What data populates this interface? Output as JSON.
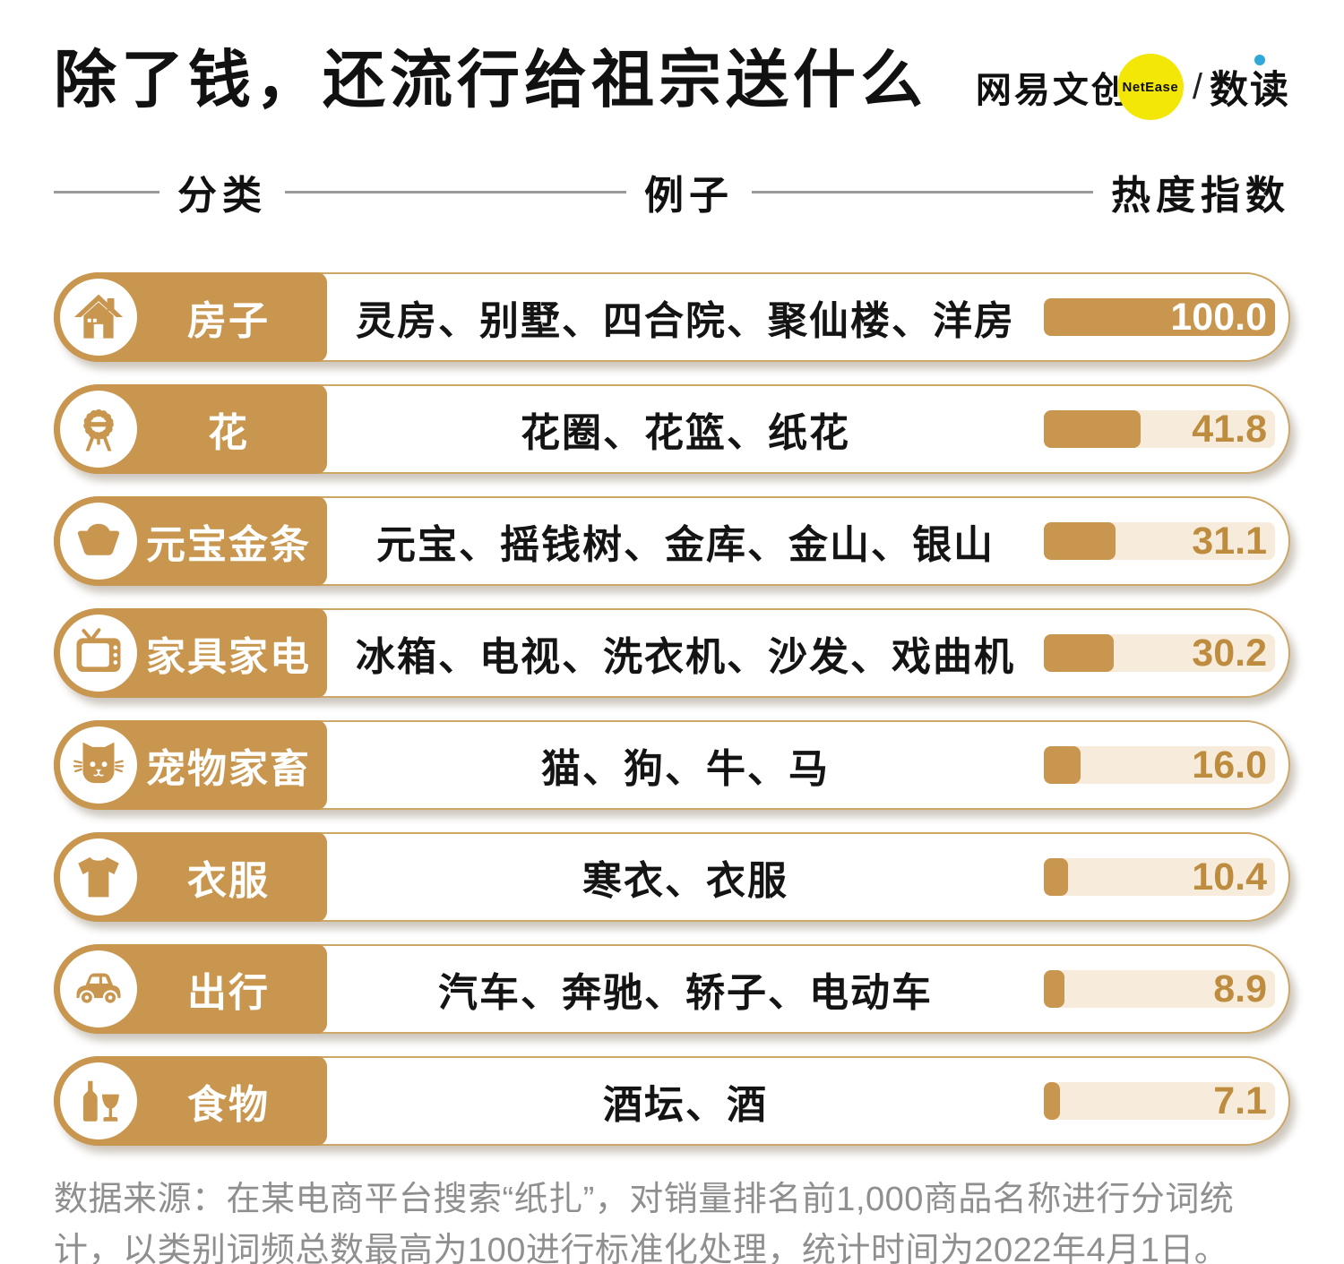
{
  "title": "除了钱，还流行给祖宗送什么",
  "logo": {
    "brand": "网易文创",
    "netease": "NetEase",
    "slash": "/",
    "product": "数读"
  },
  "columns": {
    "category": "分类",
    "examples": "例子",
    "index": "热度指数"
  },
  "rows": [
    {
      "icon": "house-icon",
      "category": "房子",
      "examples": "灵房、别墅、四合院、聚仙楼、洋房",
      "value": 100.0,
      "value_label": "100.0"
    },
    {
      "icon": "wreath-icon",
      "category": "花",
      "examples": "花圈、花篮、纸花",
      "value": 41.8,
      "value_label": "41.8"
    },
    {
      "icon": "ingot-icon",
      "category": "元宝金条",
      "examples": "元宝、摇钱树、金库、金山、银山",
      "value": 31.1,
      "value_label": "31.1"
    },
    {
      "icon": "tv-icon",
      "category": "家具家电",
      "examples": "冰箱、电视、洗衣机、沙发、戏曲机",
      "value": 30.2,
      "value_label": "30.2"
    },
    {
      "icon": "cat-icon",
      "category": "宠物家畜",
      "examples": "猫、狗、牛、马",
      "value": 16.0,
      "value_label": "16.0"
    },
    {
      "icon": "shirt-icon",
      "category": "衣服",
      "examples": "寒衣、衣服",
      "value": 10.4,
      "value_label": "10.4"
    },
    {
      "icon": "car-icon",
      "category": "出行",
      "examples": "汽车、奔驰、轿子、电动车",
      "value": 8.9,
      "value_label": "8.9"
    },
    {
      "icon": "wine-icon",
      "category": "食物",
      "examples": "酒坛、酒",
      "value": 7.1,
      "value_label": "7.1"
    }
  ],
  "footnote": "数据来源：在某电商平台搜索“纸扎”，对销量排名前1,000商品名称进行分词统计，以类别词频总数最高为100进行标准化处理，统计时间为2022年4月1日。",
  "colors": {
    "gold": "#C8964E",
    "cream": "#F7ECDB",
    "yellow": "#F3E707",
    "blue": "#2FA8D9",
    "graytext": "#8F8F8F",
    "bordergold": "#CDA765",
    "ink": "#111111"
  },
  "chart_data": {
    "type": "bar",
    "orientation": "horizontal",
    "title": "除了钱，还流行给祖宗送什么",
    "value_axis_label": "热度指数",
    "categories": [
      "房子",
      "花",
      "元宝金条",
      "家具家电",
      "宠物家畜",
      "衣服",
      "出行",
      "食物"
    ],
    "values": [
      100.0,
      41.8,
      31.1,
      30.2,
      16.0,
      10.4,
      8.9,
      7.1
    ],
    "examples": [
      "灵房、别墅、四合院、聚仙楼、洋房",
      "花圈、花篮、纸花",
      "元宝、摇钱树、金库、金山、银山",
      "冰箱、电视、洗衣机、沙发、戏曲机",
      "猫、狗、牛、马",
      "寒衣、衣服",
      "汽车、奔驰、轿子、电动车",
      "酒坛、酒"
    ],
    "xlim": [
      0,
      100
    ],
    "grid": false,
    "legend": false
  }
}
